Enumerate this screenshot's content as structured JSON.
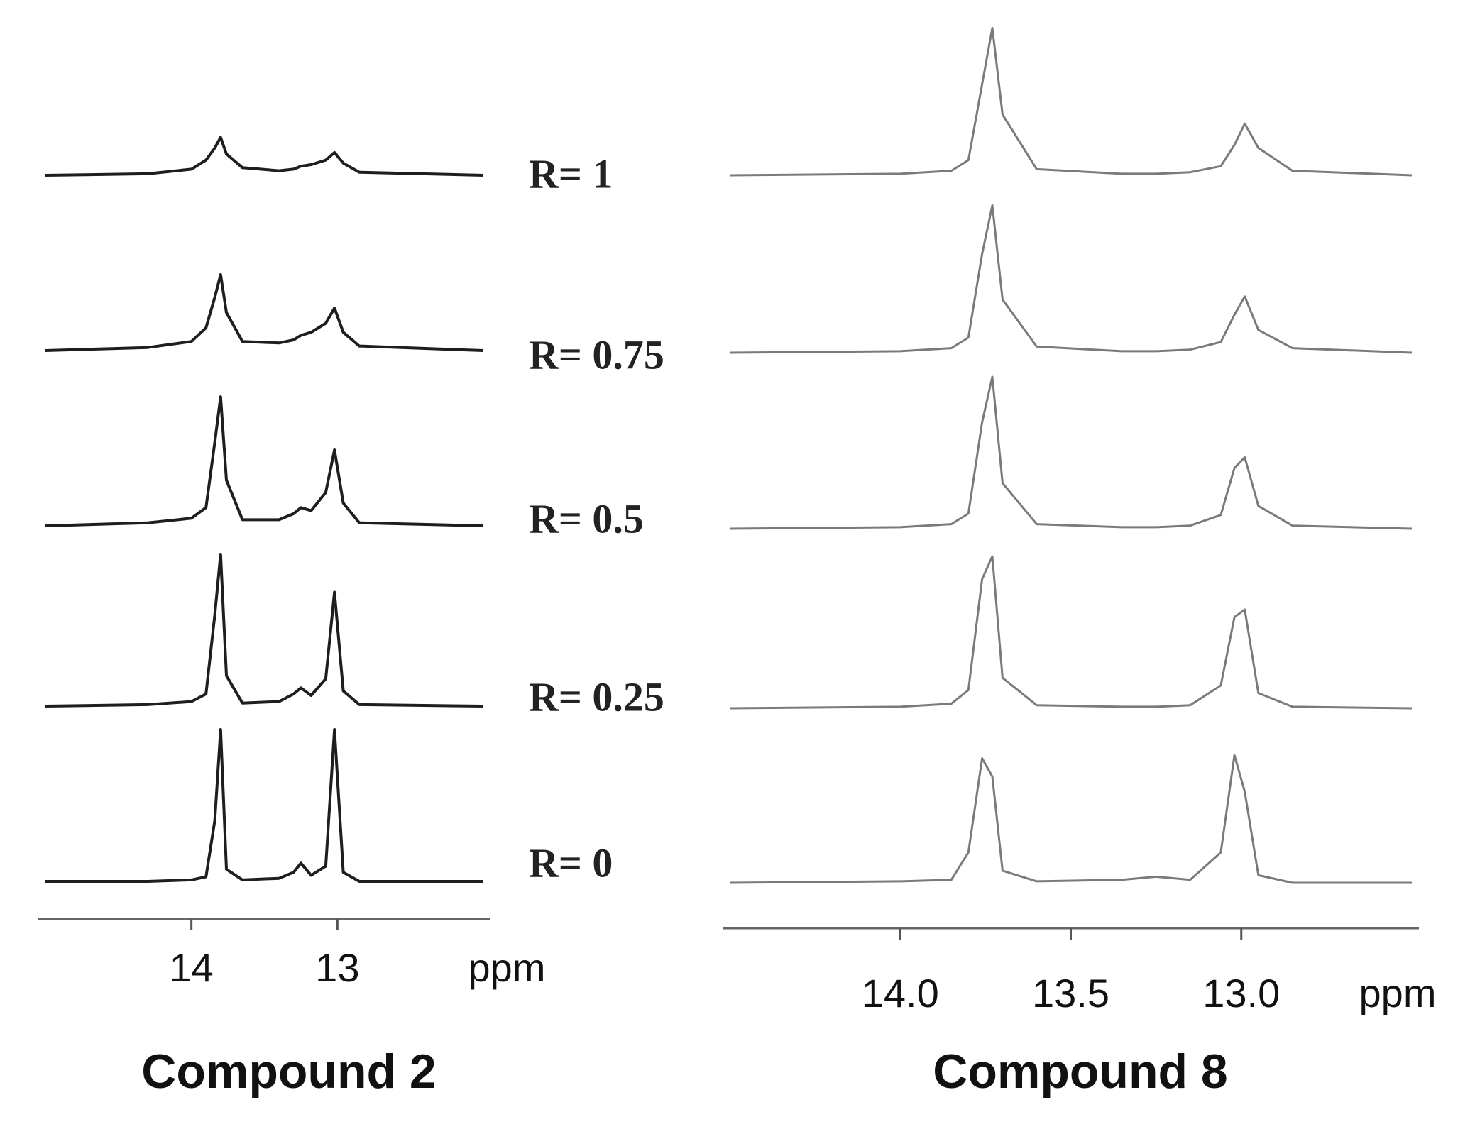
{
  "chart_data": [
    {
      "type": "line",
      "title": "Compound 2",
      "x_label": "ppm",
      "color": "#1e1e1e",
      "xlim": [
        15,
        12
      ],
      "xticks": [
        14,
        13
      ],
      "ylim": [
        0,
        100
      ],
      "x": [
        15,
        14.3,
        14.0,
        13.9,
        13.84,
        13.8,
        13.76,
        13.65,
        13.4,
        13.3,
        13.25,
        13.18,
        13.08,
        13.02,
        12.96,
        12.85,
        12.0
      ],
      "series": [
        {
          "name": "R= 1",
          "values": [
            0,
            1,
            4,
            10,
            18,
            25,
            14,
            5,
            3,
            4,
            6,
            7,
            10,
            15,
            8,
            2,
            0
          ]
        },
        {
          "name": "R= 0.75",
          "values": [
            0,
            2,
            6,
            15,
            35,
            50,
            25,
            6,
            5,
            7,
            10,
            12,
            18,
            28,
            12,
            3,
            0
          ]
        },
        {
          "name": "R= 0.5",
          "values": [
            0,
            2,
            5,
            12,
            55,
            85,
            30,
            4,
            4,
            8,
            12,
            10,
            22,
            50,
            15,
            2,
            0
          ]
        },
        {
          "name": "R= 0.25",
          "values": [
            0,
            1,
            3,
            8,
            60,
            100,
            20,
            2,
            3,
            8,
            12,
            7,
            18,
            75,
            10,
            1,
            0
          ]
        },
        {
          "name": "R= 0",
          "values": [
            0,
            0,
            1,
            3,
            40,
            100,
            8,
            1,
            2,
            6,
            12,
            4,
            10,
            100,
            6,
            0,
            0
          ]
        }
      ]
    },
    {
      "type": "line",
      "title": "Compound 8",
      "x_label": "ppm",
      "color": "#7a7a7a",
      "xlim": [
        14.5,
        12.5
      ],
      "xticks": [
        {
          "value": 14,
          "label": "14.0"
        },
        13.5,
        {
          "value": 13,
          "label": "13.0"
        }
      ],
      "ylim": [
        0,
        100
      ],
      "x": [
        14.5,
        14.0,
        13.85,
        13.8,
        13.76,
        13.73,
        13.7,
        13.6,
        13.35,
        13.25,
        13.15,
        13.06,
        13.02,
        12.99,
        12.95,
        12.85,
        12.5
      ],
      "series": [
        {
          "values": [
            0,
            1,
            3,
            10,
            60,
            97,
            40,
            4,
            1,
            1,
            2,
            6,
            20,
            34,
            18,
            3,
            0
          ]
        },
        {
          "values": [
            0,
            1,
            3,
            10,
            65,
            97,
            35,
            4,
            1,
            1,
            2,
            7,
            25,
            37,
            15,
            3,
            0
          ]
        },
        {
          "values": [
            0,
            1,
            3,
            10,
            70,
            100,
            30,
            3,
            1,
            1,
            2,
            9,
            40,
            47,
            15,
            2,
            0
          ]
        },
        {
          "values": [
            0,
            1,
            3,
            12,
            85,
            100,
            20,
            2,
            1,
            1,
            2,
            15,
            60,
            65,
            10,
            1,
            0
          ]
        },
        {
          "values": [
            0,
            1,
            2,
            20,
            82,
            70,
            8,
            1,
            2,
            4,
            2,
            20,
            84,
            60,
            5,
            0,
            0
          ]
        }
      ]
    }
  ]
}
